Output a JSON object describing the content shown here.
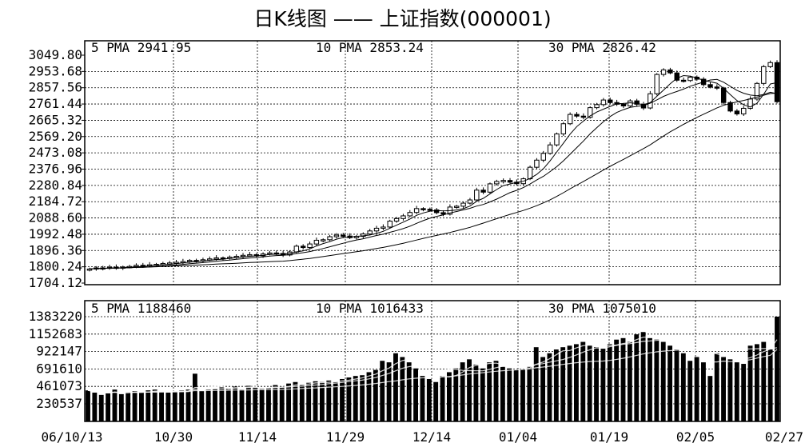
{
  "title": "日K线图 —— 上证指数(000001)",
  "price_legend": [
    "5 PMA 2941.95",
    "10 PMA 2853.24",
    "30 PMA 2826.42"
  ],
  "volume_legend": [
    "5 PMA 1188460",
    "10 PMA 1016433",
    "30 PMA 1075010"
  ],
  "x_tick_labels": [
    "06/10/13",
    "10/30",
    "11/14",
    "11/29",
    "12/14",
    "01/04",
    "01/19",
    "02/05",
    "02/27"
  ],
  "chart_data": [
    {
      "type": "candlestick",
      "title": "",
      "ylim": [
        1704.12,
        3049.8
      ],
      "y_tick_labels": [
        "3049.80",
        "2953.68",
        "2857.56",
        "2761.44",
        "2665.32",
        "2569.20",
        "2473.08",
        "2376.96",
        "2280.84",
        "2184.72",
        "2088.60",
        "1992.48",
        "1896.36",
        "1800.24",
        "1704.12"
      ],
      "categories": [
        "06/10/13",
        "10/30",
        "11/14",
        "11/29",
        "12/14",
        "01/04",
        "01/19",
        "02/05",
        "02/27"
      ],
      "close": [
        1787,
        1794,
        1791,
        1798,
        1793,
        1799,
        1802,
        1809,
        1806,
        1812,
        1815,
        1820,
        1823,
        1827,
        1831,
        1838,
        1835,
        1842,
        1847,
        1853,
        1850,
        1857,
        1862,
        1868,
        1872,
        1865,
        1876,
        1882,
        1879,
        1870,
        1888,
        1922,
        1914,
        1935,
        1957,
        1960,
        1978,
        1987,
        1982,
        1972,
        1980,
        1994,
        2012,
        2028,
        2035,
        2070,
        2085,
        2101,
        2121,
        2144,
        2140,
        2136,
        2120,
        2111,
        2153,
        2158,
        2176,
        2195,
        2253,
        2241,
        2290,
        2304,
        2310,
        2300,
        2291,
        2320,
        2388,
        2430,
        2470,
        2520,
        2585,
        2645,
        2700,
        2690,
        2683,
        2740,
        2758,
        2785,
        2770,
        2760,
        2750,
        2780,
        2760,
        2738,
        2822,
        2936,
        2963,
        2945,
        2902,
        2900,
        2920,
        2908,
        2876,
        2862,
        2855,
        2770,
        2720,
        2703,
        2736,
        2791,
        2883,
        2982,
        3006,
        2775
      ],
      "series": [
        {
          "name": "5 PMA",
          "last": 2941.95
        },
        {
          "name": "10 PMA",
          "last": 2853.24
        },
        {
          "name": "30 PMA",
          "last": 2826.42
        }
      ]
    },
    {
      "type": "bar",
      "title": "",
      "ylim": [
        0,
        1383220
      ],
      "y_tick_labels": [
        "1383220",
        "1152683",
        "922147",
        "691610",
        "461073",
        "230537"
      ],
      "values": [
        410000,
        380000,
        350000,
        370000,
        420000,
        360000,
        390000,
        400000,
        380000,
        410000,
        420000,
        390000,
        380000,
        400000,
        410000,
        420000,
        630000,
        400000,
        420000,
        430000,
        450000,
        440000,
        460000,
        420000,
        470000,
        450000,
        430000,
        440000,
        480000,
        460000,
        500000,
        520000,
        480000,
        510000,
        530000,
        520000,
        540000,
        520000,
        560000,
        580000,
        600000,
        610000,
        650000,
        680000,
        800000,
        780000,
        900000,
        850000,
        780000,
        700000,
        600000,
        560000,
        520000,
        600000,
        650000,
        700000,
        780000,
        820000,
        750000,
        700000,
        780000,
        800000,
        720000,
        700000,
        680000,
        690000,
        720000,
        980000,
        850000,
        900000,
        950000,
        980000,
        1000000,
        1020000,
        1050000,
        1000000,
        980000,
        960000,
        1020000,
        1080000,
        1100000,
        1050000,
        1150000,
        1180000,
        1100000,
        1080000,
        1050000,
        1000000,
        950000,
        900000,
        800000,
        850000,
        780000,
        600000,
        900000,
        850000,
        820000,
        780000,
        760000,
        1000000,
        1020000,
        1050000,
        950000,
        1383220
      ],
      "series": [
        {
          "name": "5 PMA",
          "last": 1188460
        },
        {
          "name": "10 PMA",
          "last": 1016433
        },
        {
          "name": "30 PMA",
          "last": 1075010
        }
      ]
    }
  ]
}
